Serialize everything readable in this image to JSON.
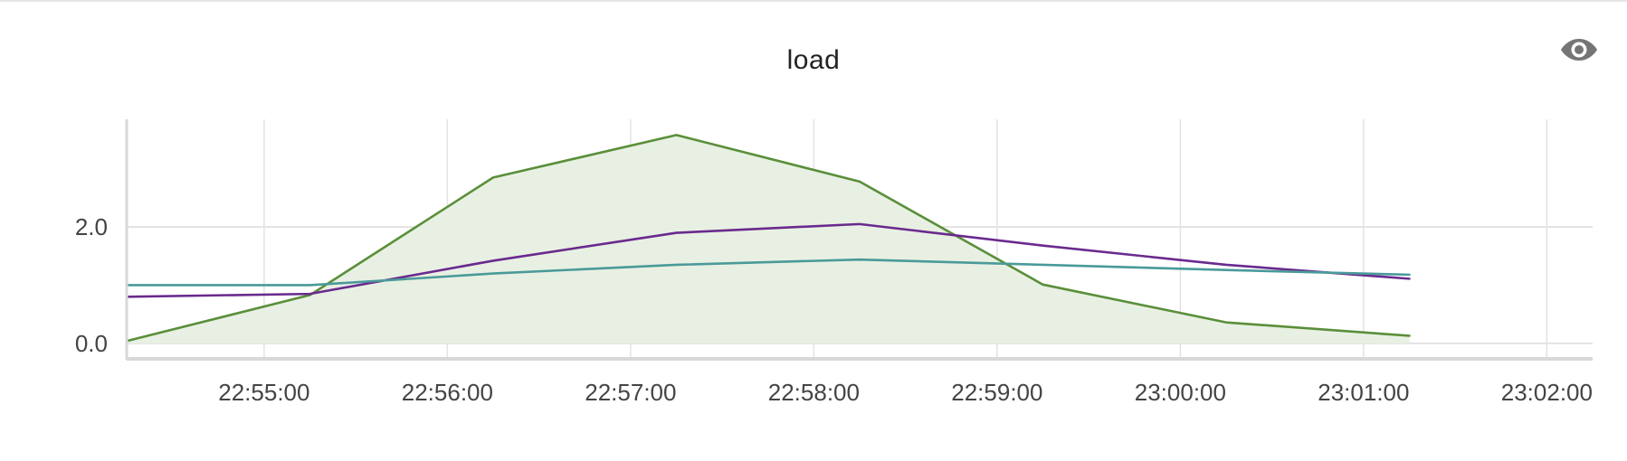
{
  "panel": {
    "title": "load",
    "icons": {
      "visibility": "eye-icon"
    }
  },
  "chart_data": {
    "type": "line",
    "title": "load",
    "xlabel": "",
    "ylabel": "",
    "x_tick_labels": [
      "22:55:00",
      "22:56:00",
      "22:57:00",
      "22:58:00",
      "22:59:00",
      "23:00:00",
      "23:01:00",
      "23:02:00"
    ],
    "x_ticks": [
      "22:55:00",
      "22:56:00",
      "22:57:00",
      "22:58:00",
      "22:59:00",
      "23:00:00",
      "23:01:00",
      "23:02:00"
    ],
    "y_tick_labels": [
      "0.0",
      "2.0"
    ],
    "y_ticks": [
      0.0,
      2.0
    ],
    "xlim": [
      "22:54:15",
      "23:02:15"
    ],
    "ylim": [
      -0.22,
      3.85
    ],
    "grid": true,
    "legend": "none",
    "x": [
      "22:54:15",
      "22:55:15",
      "22:56:15",
      "22:57:15",
      "22:58:15",
      "22:59:15",
      "23:00:15",
      "23:01:15"
    ],
    "series": [
      {
        "color": "#5a8f3a",
        "fill": true,
        "fill_color": "#e8f0e3",
        "values": [
          0.04,
          0.83,
          2.85,
          3.58,
          2.78,
          1.01,
          0.36,
          0.13
        ]
      },
      {
        "color": "#6a2a8e",
        "fill": false,
        "values": [
          0.8,
          0.85,
          1.42,
          1.9,
          2.05,
          1.68,
          1.35,
          1.11
        ]
      },
      {
        "color": "#4a9a9a",
        "fill": false,
        "values": [
          1.0,
          1.0,
          1.2,
          1.35,
          1.44,
          1.35,
          1.26,
          1.18
        ]
      }
    ],
    "colors": {
      "grid": "#e3e3e3",
      "axis": "#d8d8d8",
      "tick_text": "#444444"
    }
  }
}
